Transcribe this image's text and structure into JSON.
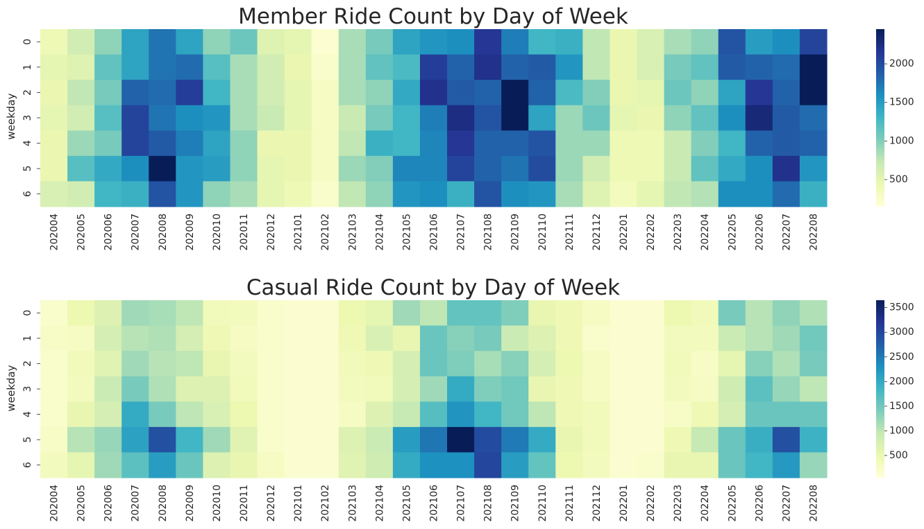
{
  "palette": [
    "#ffffd9",
    "#edf8b1",
    "#c7e9b4",
    "#7fcdbb",
    "#41b6c4",
    "#1d91c0",
    "#225ea8",
    "#253494",
    "#081d58"
  ],
  "chart_data": [
    {
      "type": "heatmap",
      "title": "Member Ride Count by Day of Week",
      "xlabel": "",
      "ylabel": "weekday",
      "x": [
        "202004",
        "202005",
        "202006",
        "202007",
        "202008",
        "202009",
        "202010",
        "202011",
        "202012",
        "202101",
        "202102",
        "202103",
        "202104",
        "202105",
        "202106",
        "202107",
        "202108",
        "202109",
        "202110",
        "202111",
        "202112",
        "202201",
        "202202",
        "202203",
        "202204",
        "202205",
        "202206",
        "202207",
        "202208"
      ],
      "y": [
        "0",
        "1",
        "2",
        "3",
        "4",
        "5",
        "6"
      ],
      "vmin": 150,
      "vmax": 2450,
      "colorbar_ticks": [
        500,
        1000,
        1500,
        2000
      ],
      "values": [
        [
          400,
          650,
          950,
          1450,
          1750,
          1450,
          950,
          1100,
          550,
          500,
          200,
          850,
          1050,
          1450,
          1550,
          1600,
          2150,
          1700,
          1300,
          1350,
          750,
          450,
          600,
          850,
          950,
          1950,
          1500,
          1600,
          2050
        ],
        [
          500,
          550,
          1150,
          1450,
          1750,
          1800,
          1200,
          850,
          650,
          450,
          250,
          850,
          1150,
          1250,
          2100,
          1850,
          2200,
          1850,
          1900,
          1550,
          750,
          450,
          600,
          1050,
          1150,
          1900,
          1850,
          1800,
          2450
        ],
        [
          450,
          750,
          1050,
          1850,
          1800,
          2100,
          1300,
          850,
          650,
          500,
          300,
          850,
          950,
          1400,
          2200,
          1900,
          1850,
          2450,
          1850,
          1250,
          1000,
          450,
          500,
          1100,
          950,
          1450,
          2150,
          1850,
          2450
        ],
        [
          500,
          650,
          1200,
          2050,
          1750,
          1600,
          1550,
          850,
          700,
          500,
          300,
          700,
          1050,
          1300,
          1700,
          2250,
          1950,
          2450,
          1450,
          900,
          1100,
          500,
          450,
          950,
          1150,
          1600,
          2300,
          1900,
          1800
        ],
        [
          450,
          900,
          1050,
          2050,
          1900,
          1700,
          1450,
          950,
          450,
          450,
          300,
          750,
          1350,
          1300,
          1650,
          2150,
          1850,
          1850,
          1950,
          900,
          900,
          400,
          400,
          700,
          1000,
          1300,
          1850,
          1900,
          1850
        ],
        [
          450,
          1200,
          1400,
          1600,
          2450,
          1550,
          1500,
          950,
          500,
          450,
          300,
          900,
          1000,
          1650,
          1650,
          2050,
          1850,
          1750,
          2000,
          900,
          650,
          400,
          400,
          700,
          1150,
          1400,
          1600,
          2200,
          1550
        ],
        [
          600,
          650,
          1300,
          1350,
          1950,
          1550,
          950,
          850,
          500,
          400,
          250,
          750,
          950,
          1550,
          1600,
          1350,
          1950,
          1600,
          1550,
          850,
          550,
          350,
          500,
          750,
          800,
          1600,
          1600,
          1800,
          1350
        ]
      ]
    },
    {
      "type": "heatmap",
      "title": "Casual Ride Count by Day of Week",
      "xlabel": "",
      "ylabel": "weekday",
      "x": [
        "202004",
        "202005",
        "202006",
        "202007",
        "202008",
        "202009",
        "202010",
        "202011",
        "202012",
        "202101",
        "202102",
        "202103",
        "202104",
        "202105",
        "202106",
        "202107",
        "202108",
        "202109",
        "202110",
        "202111",
        "202112",
        "202201",
        "202202",
        "202203",
        "202204",
        "202205",
        "202206",
        "202207",
        "202208"
      ],
      "y": [
        "0",
        "1",
        "2",
        "3",
        "4",
        "5",
        "6"
      ],
      "vmin": 50,
      "vmax": 3650,
      "colorbar_ticks": [
        500,
        1000,
        1500,
        2000,
        2500,
        3000,
        3500
      ],
      "values": [
        [
          200,
          500,
          700,
          1200,
          1150,
          1000,
          400,
          350,
          200,
          150,
          150,
          500,
          600,
          1200,
          1000,
          1600,
          1600,
          1400,
          550,
          450,
          300,
          150,
          150,
          500,
          400,
          1450,
          1050,
          1300,
          1100
        ],
        [
          250,
          300,
          800,
          1050,
          1100,
          800,
          450,
          300,
          200,
          150,
          150,
          450,
          750,
          550,
          1550,
          1350,
          1450,
          900,
          700,
          450,
          200,
          150,
          150,
          350,
          350,
          900,
          1050,
          1200,
          1500
        ],
        [
          200,
          400,
          650,
          1200,
          1050,
          1000,
          550,
          350,
          200,
          150,
          150,
          400,
          450,
          800,
          1550,
          1400,
          1150,
          1350,
          800,
          500,
          300,
          150,
          150,
          400,
          250,
          600,
          1350,
          1100,
          1450
        ],
        [
          200,
          350,
          900,
          1450,
          1100,
          700,
          700,
          400,
          200,
          150,
          150,
          350,
          400,
          800,
          1200,
          2000,
          1400,
          1500,
          550,
          450,
          300,
          150,
          150,
          350,
          300,
          850,
          1650,
          1250,
          1000
        ],
        [
          200,
          550,
          800,
          2000,
          1450,
          1000,
          750,
          500,
          200,
          150,
          150,
          300,
          700,
          950,
          1700,
          2250,
          1850,
          1500,
          1000,
          450,
          400,
          150,
          150,
          250,
          450,
          800,
          1550,
          1550,
          1550
        ],
        [
          250,
          1050,
          1250,
          2100,
          2900,
          1850,
          1200,
          650,
          200,
          150,
          150,
          700,
          900,
          2150,
          2550,
          3650,
          2950,
          2500,
          2000,
          550,
          400,
          150,
          150,
          450,
          950,
          1550,
          1950,
          2900,
          1900
        ],
        [
          350,
          600,
          1200,
          1650,
          2150,
          1550,
          700,
          550,
          300,
          150,
          150,
          650,
          850,
          2000,
          2300,
          2300,
          3000,
          2150,
          1600,
          500,
          350,
          150,
          200,
          550,
          550,
          1550,
          1850,
          2200,
          1250
        ]
      ]
    }
  ]
}
